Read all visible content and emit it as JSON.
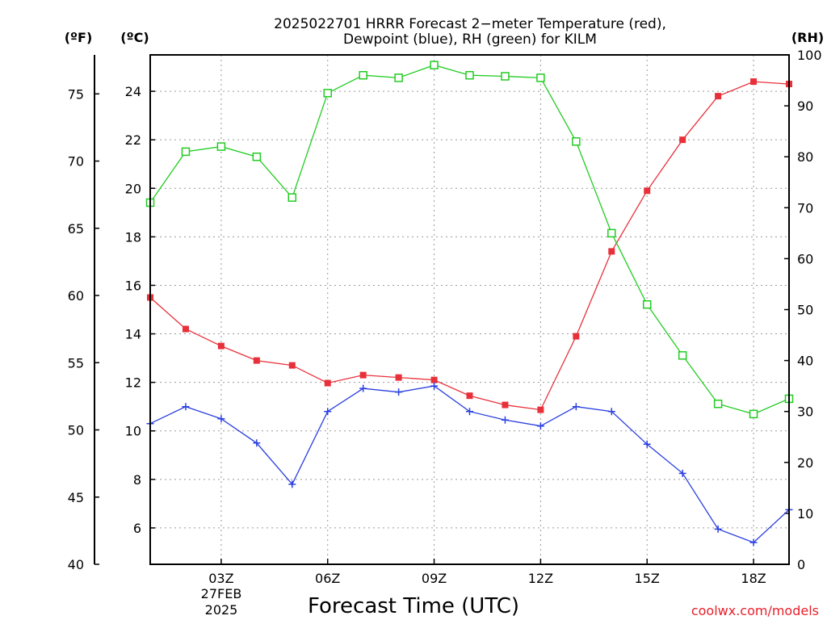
{
  "title_line1": "2025022701 HRRR Forecast 2−meter Temperature (red),",
  "title_line2": "Dewpoint (blue), RH (green) for KILM",
  "units": {
    "f": "(ºF)",
    "c": "(ºC)",
    "rh": "(RH)"
  },
  "xlabel": "Forecast Time (UTC)",
  "credit": "coolwx.com/models",
  "date_label": [
    "27FEB",
    "2025"
  ],
  "colors": {
    "temperature": "#e8303a",
    "dewpoint": "#2a3fe0",
    "rh": "#22cc22"
  },
  "chart_data": {
    "type": "line",
    "x_hours": [
      1,
      2,
      3,
      4,
      5,
      6,
      7,
      8,
      9,
      10,
      11,
      12,
      13,
      14,
      15,
      16,
      17,
      18,
      19
    ],
    "xlim": [
      1,
      19
    ],
    "x_ticks": [
      {
        "hour": 3,
        "label": "03Z"
      },
      {
        "hour": 6,
        "label": "06Z"
      },
      {
        "hour": 9,
        "label": "09Z"
      },
      {
        "hour": 12,
        "label": "12Z"
      },
      {
        "hour": 15,
        "label": "15Z"
      },
      {
        "hour": 18,
        "label": "18Z"
      }
    ],
    "y_left_c": {
      "range": [
        4.5,
        25.5
      ],
      "ticks": [
        6,
        8,
        10,
        12,
        14,
        16,
        18,
        20,
        22,
        24
      ]
    },
    "y_left_f": {
      "range": [
        40,
        77.9
      ],
      "ticks": [
        40,
        45,
        50,
        55,
        60,
        65,
        70,
        75
      ]
    },
    "y_right_rh": {
      "range": [
        0,
        100
      ],
      "ticks": [
        0,
        10,
        20,
        30,
        40,
        50,
        60,
        70,
        80,
        90,
        100
      ]
    },
    "grid": true,
    "series": [
      {
        "name": "Temperature",
        "axis": "c",
        "marker": "filled-square",
        "values": [
          15.5,
          14.2,
          13.5,
          12.9,
          12.7,
          11.97,
          12.3,
          12.2,
          12.1,
          11.45,
          11.07,
          10.87,
          13.9,
          17.4,
          19.9,
          22.0,
          23.8,
          24.4,
          24.3
        ]
      },
      {
        "name": "Dewpoint",
        "axis": "c",
        "marker": "plus",
        "values": [
          10.3,
          11.0,
          10.5,
          9.5,
          7.8,
          10.8,
          11.75,
          11.6,
          11.85,
          10.8,
          10.45,
          10.2,
          11.0,
          10.8,
          9.45,
          8.25,
          5.95,
          5.4,
          6.75
        ]
      },
      {
        "name": "RH",
        "axis": "rh",
        "marker": "open-square",
        "values": [
          71,
          81,
          82,
          80,
          72,
          92.5,
          96,
          95.5,
          98,
          96,
          95.8,
          95.5,
          83,
          65,
          51,
          41,
          31.5,
          29.5,
          32.5
        ]
      }
    ]
  }
}
